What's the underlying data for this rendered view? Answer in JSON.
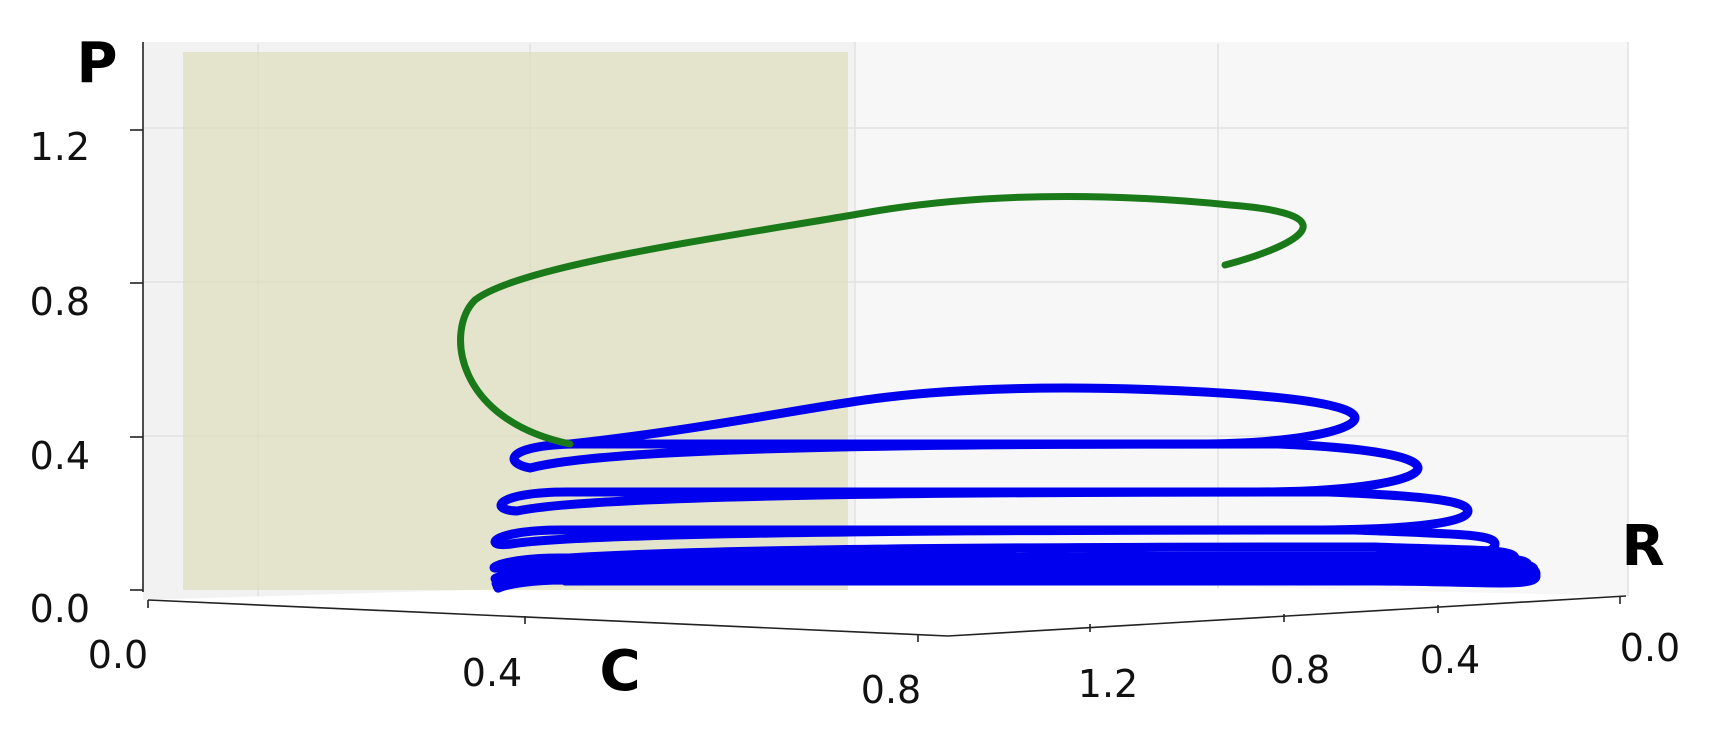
{
  "chart_data": {
    "type": "line",
    "projection": "3d",
    "axes": {
      "x": {
        "label": "C",
        "ticks": [
          "0.0",
          "0.4",
          "0.8"
        ]
      },
      "y": {
        "label": "R",
        "ticks": [
          "1.2",
          "0.8",
          "0.4",
          "0.0"
        ]
      },
      "z": {
        "label": "P",
        "ticks": [
          "1.2",
          "0.8",
          "0.4",
          "0.0"
        ]
      }
    },
    "plane_color": "#dcdcb4",
    "grid": true,
    "series": [
      {
        "color": "#1a7a1a",
        "segment": "upper"
      },
      {
        "color": "#0000ee",
        "segment": "lower"
      }
    ]
  }
}
